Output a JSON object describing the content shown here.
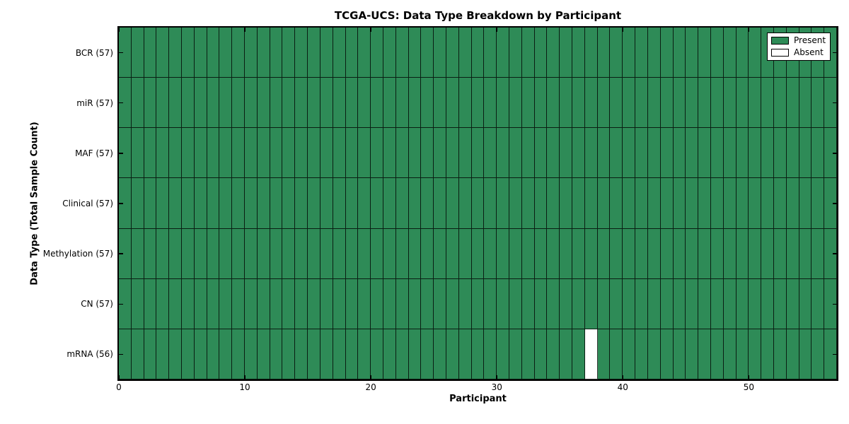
{
  "figure": {
    "title": "TCGA-UCS: Data Type Breakdown by Participant",
    "xlabel": "Participant",
    "ylabel": "Data Type (Total Sample Count)"
  },
  "legend": {
    "items": [
      {
        "label": "Present",
        "color": "#2e8b57"
      },
      {
        "label": "Absent",
        "color": "#ffffff"
      }
    ]
  },
  "chart_data": {
    "type": "heatmap",
    "title": "TCGA-UCS: Data Type Breakdown by Participant",
    "xlabel": "Participant",
    "ylabel": "Data Type (Total Sample Count)",
    "xlim": [
      0,
      57
    ],
    "x_ticks": [
      0,
      10,
      20,
      30,
      40,
      50
    ],
    "n_participants": 57,
    "rows": [
      {
        "label": "BCR (57)",
        "data_type": "BCR",
        "present_count": 57,
        "absent_participants": []
      },
      {
        "label": "miR (57)",
        "data_type": "miR",
        "present_count": 57,
        "absent_participants": []
      },
      {
        "label": "MAF (57)",
        "data_type": "MAF",
        "present_count": 57,
        "absent_participants": []
      },
      {
        "label": "Clinical (57)",
        "data_type": "Clinical",
        "present_count": 57,
        "absent_participants": []
      },
      {
        "label": "Methylation (57)",
        "data_type": "Methylation",
        "present_count": 57,
        "absent_participants": []
      },
      {
        "label": "CN (57)",
        "data_type": "CN",
        "present_count": 57,
        "absent_participants": []
      },
      {
        "label": "mRNA (56)",
        "data_type": "mRNA",
        "present_count": 56,
        "absent_participants": [
          37
        ]
      }
    ],
    "colors": {
      "present": "#2e8b57",
      "absent": "#ffffff",
      "cell_edge": "#000000",
      "frame": "#000000",
      "background": "#ffffff"
    },
    "legend": {
      "position": "upper right",
      "entries": [
        "Present",
        "Absent"
      ]
    },
    "grid": "cell-borders",
    "tick_direction": "in"
  }
}
